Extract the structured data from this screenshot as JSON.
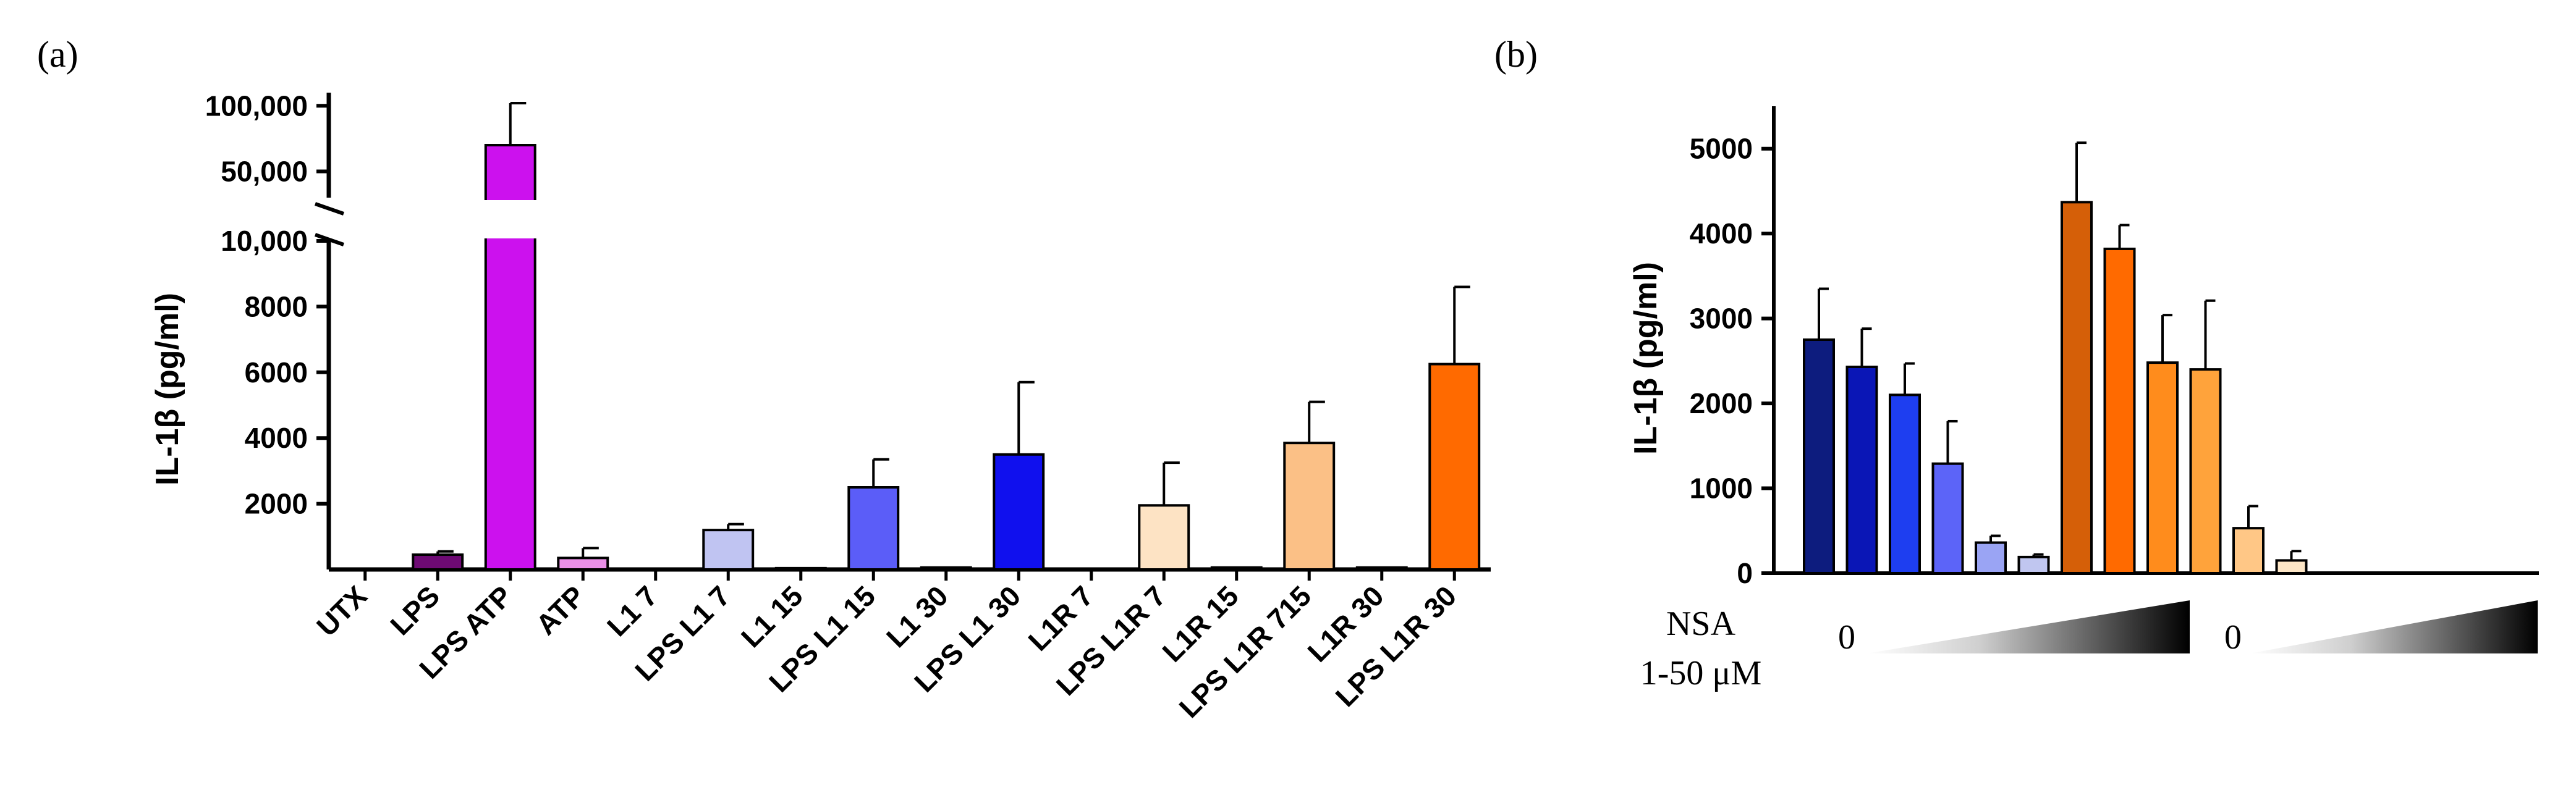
{
  "chart_data": [
    {
      "panel": "(a)",
      "type": "bar",
      "ylabel": "IL-1β (pg/ml)",
      "categories": [
        "UTX",
        "LPS",
        "LPS ATP",
        "ATP",
        "L1 7",
        "LPS L1 7",
        "L1 15",
        "LPS L1 15",
        "L1 30",
        "LPS L1 30",
        "L1R 7",
        "LPS L1R 7",
        "L1R 15",
        "LPS L1R 715",
        "L1R 30",
        "LPS L1R 30"
      ],
      "values": [
        0,
        450,
        70000,
        350,
        0,
        1200,
        40,
        2500,
        60,
        3500,
        0,
        1950,
        60,
        3850,
        60,
        6250
      ],
      "errors": [
        0,
        100,
        32000,
        300,
        0,
        180,
        0,
        850,
        0,
        2200,
        0,
        1300,
        0,
        1250,
        0,
        2350
      ],
      "colors": [
        "#000000",
        "#6e0a74",
        "#cc11ee",
        "#e98fe6",
        "#000000",
        "#c0c4f2",
        "#000000",
        "#5b5df8",
        "#000000",
        "#1010ee",
        "#000000",
        "#fde3c4",
        "#000000",
        "#fbc086",
        "#000000",
        "#ff6a00"
      ],
      "axis_break": true,
      "lower_ylim": [
        0,
        10000
      ],
      "lower_yticks": [
        "2000",
        "4000",
        "6000",
        "8000",
        "10,000"
      ],
      "upper_ylim": [
        30000,
        110000
      ],
      "upper_yticks": [
        "50,000",
        "100,000"
      ]
    },
    {
      "panel": "(b)",
      "type": "bar",
      "ylabel": "IL-1β (pg/ml)",
      "ylim": [
        0,
        5500
      ],
      "yticks": [
        "0",
        "1000",
        "2000",
        "3000",
        "4000",
        "5000"
      ],
      "groups": [
        {
          "values": [
            2750,
            2430,
            2100,
            1290,
            360,
            190
          ],
          "errors": [
            600,
            450,
            370,
            500,
            80,
            30
          ],
          "colors": [
            "#0d1c7e",
            "#0a16b6",
            "#1e3ef0",
            "#5c64f8",
            "#9aa4f4",
            "#c0c6f0"
          ]
        },
        {
          "values": [
            4370,
            3820,
            2480,
            2400,
            530,
            150
          ],
          "errors": [
            700,
            280,
            560,
            810,
            260,
            110
          ],
          "colors": [
            "#d55f08",
            "#ff6a00",
            "#ff8c1c",
            "#ffa33b",
            "#ffc786",
            "#fde6c6"
          ]
        }
      ],
      "treatment_label": "NSA",
      "treatment_range": "1-50 μM",
      "group_start_labels": [
        "0",
        "0"
      ]
    }
  ]
}
